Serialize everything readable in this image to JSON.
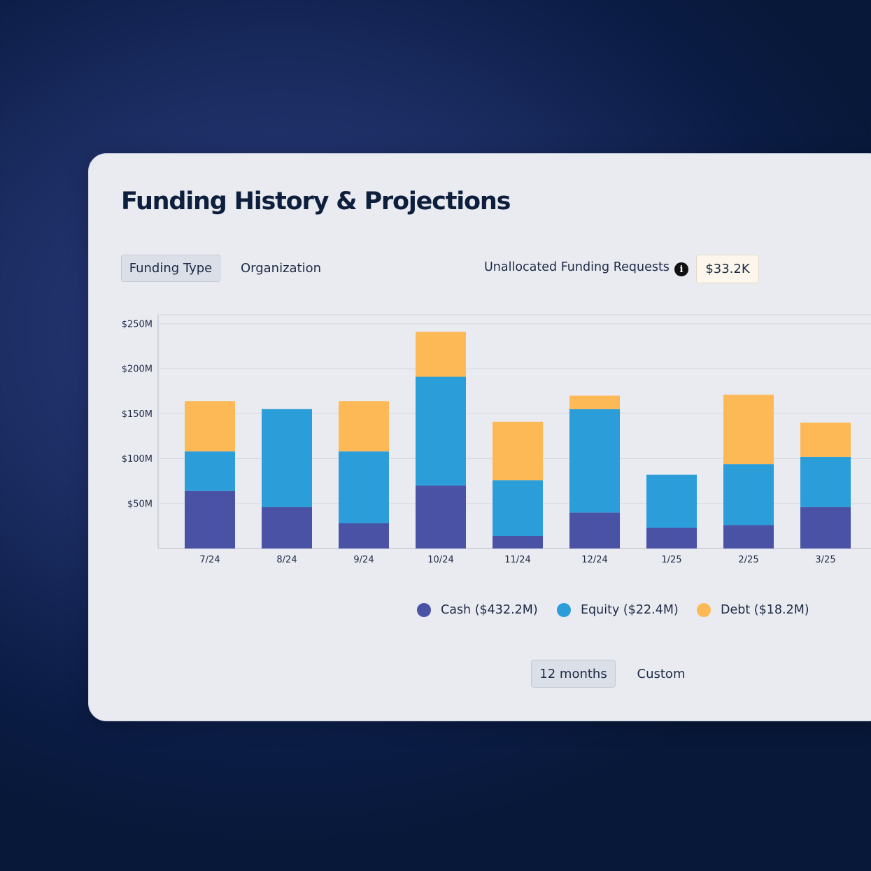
{
  "title": "Funding History & Projections",
  "view_tabs": [
    {
      "label": "Funding Type",
      "active": true
    },
    {
      "label": "Organization",
      "active": false
    }
  ],
  "unallocated": {
    "label": "Unallocated Funding Requests",
    "info_icon": "info-icon",
    "value": "$33.2K"
  },
  "range_tabs": [
    {
      "label": "12 months",
      "active": true
    },
    {
      "label": "Custom",
      "active": false
    }
  ],
  "colors": {
    "cash": "#4a52a6",
    "equity": "#2b9dd8",
    "debt": "#fdb955",
    "grid": "#d6d9e1",
    "axis": "#c6cbd5"
  },
  "chart_data": {
    "type": "bar",
    "stacked": true,
    "title": "",
    "xlabel": "",
    "ylabel": "",
    "ylim": [
      0,
      260
    ],
    "y_ticks": [
      50,
      100,
      150,
      200,
      250
    ],
    "y_tick_labels": [
      "$50M",
      "$100M",
      "$150M",
      "$200M",
      "$250M"
    ],
    "categories": [
      "7/24",
      "8/24",
      "9/24",
      "10/24",
      "11/24",
      "12/24",
      "1/25",
      "2/25",
      "3/25"
    ],
    "series": [
      {
        "name": "Cash",
        "legend_label": "Cash ($432.2M)",
        "color": "#4a52a6",
        "values": [
          64,
          46,
          28,
          70,
          14,
          40,
          23,
          26,
          46
        ]
      },
      {
        "name": "Equity",
        "legend_label": "Equity ($22.4M)",
        "color": "#2b9dd8",
        "values": [
          44,
          109,
          80,
          121,
          62,
          115,
          59,
          68,
          56
        ]
      },
      {
        "name": "Debt",
        "legend_label": "Debt ($18.2M)",
        "color": "#fdb955",
        "values": [
          56,
          0,
          56,
          50,
          65,
          15,
          0,
          77,
          38
        ]
      }
    ]
  }
}
